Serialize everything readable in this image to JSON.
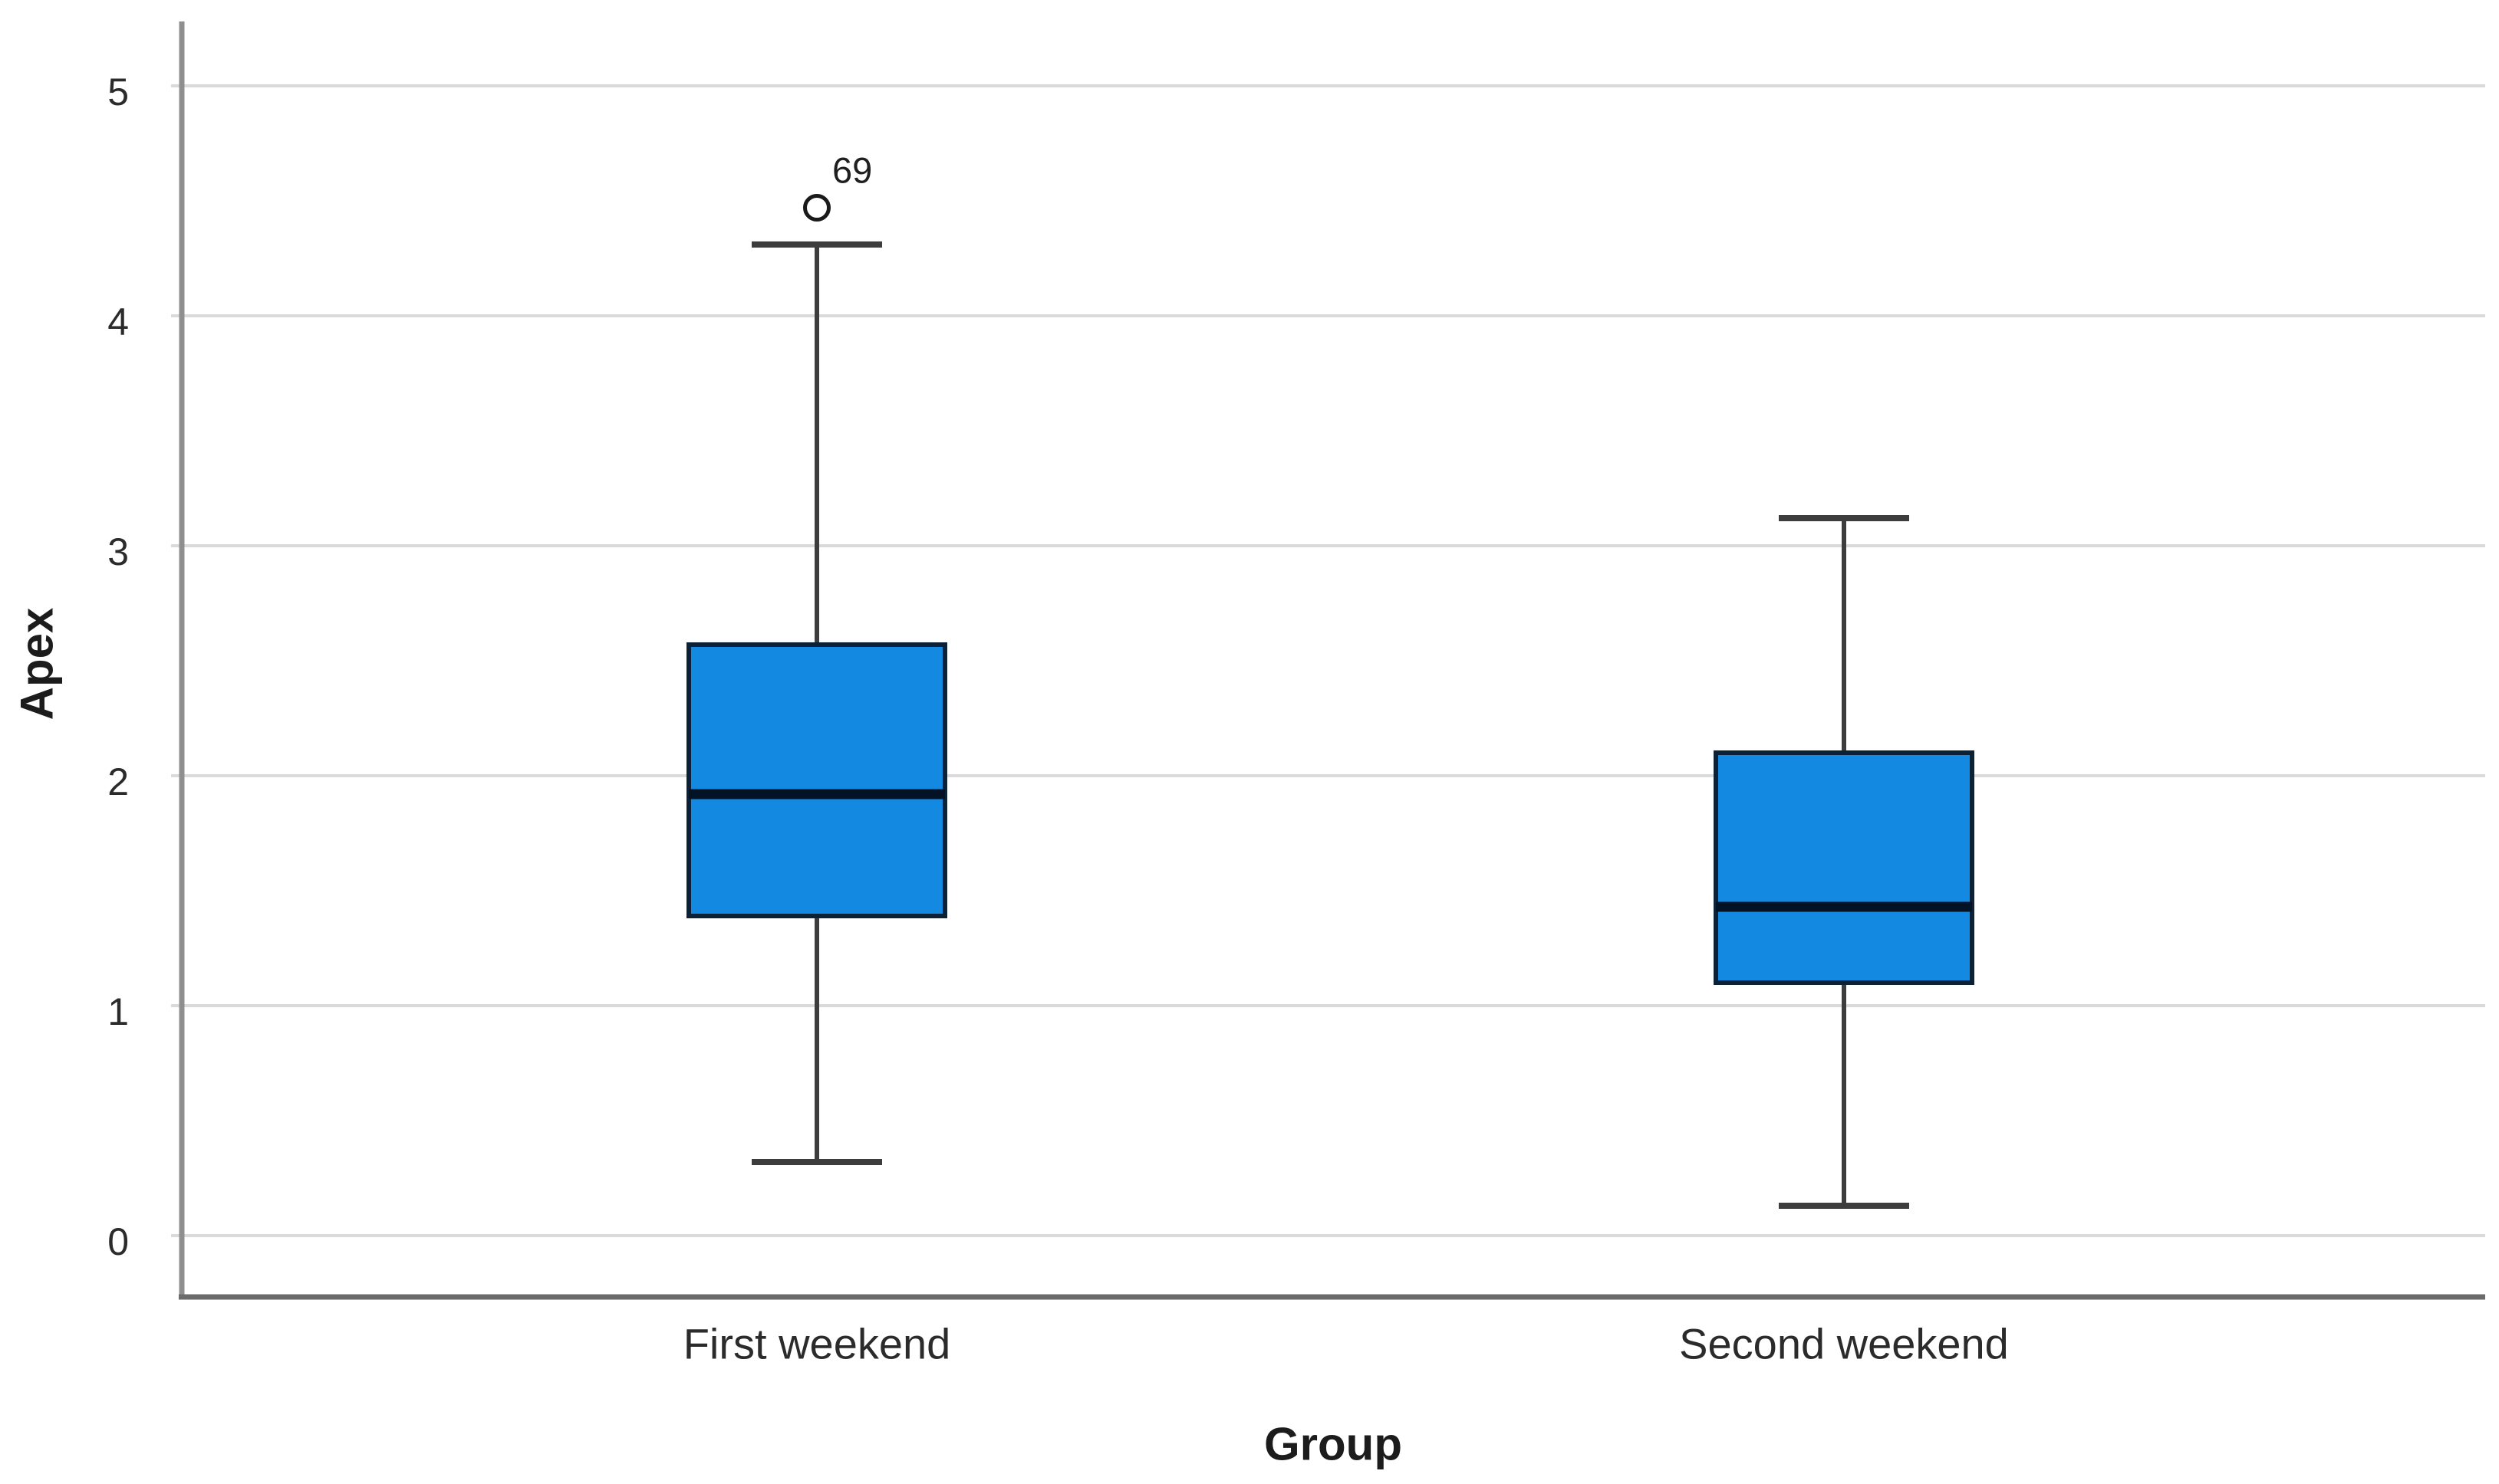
{
  "figure": {
    "background": "#FFFFFF"
  },
  "chart_data": {
    "type": "boxplot",
    "title": "",
    "xlabel": "Group",
    "ylabel": "Apex",
    "categories": [
      "First weekend",
      "Second weekend"
    ],
    "y_ticks": [
      0,
      1,
      2,
      3,
      4,
      5
    ],
    "ylim": [
      -0.27,
      5.28
    ],
    "grid": "horizontal",
    "legend": "none",
    "series": [
      {
        "category": "First weekend",
        "whisker_low": 0.32,
        "q1": 1.39,
        "median": 1.92,
        "q3": 2.57,
        "whisker_high": 4.31,
        "outliers": [
          {
            "value": 4.47,
            "label": "69"
          }
        ]
      },
      {
        "category": "Second weekend",
        "whisker_low": 0.13,
        "q1": 1.1,
        "median": 1.43,
        "q3": 2.1,
        "whisker_high": 3.12,
        "outliers": []
      }
    ],
    "colors": {
      "box_fill": "#1489E1",
      "box_border": "#0B2138",
      "median_line": "#041226",
      "whisker": "#3D3D3D",
      "gridline": "#DADADA",
      "y_axis_line": "#8F8F8F",
      "x_axis_line": "#6B6B6B",
      "tick_text": "#2B2B2B",
      "outlier_stroke": "#1A1A1A",
      "outlier_fill": "#FFFFFF"
    }
  }
}
